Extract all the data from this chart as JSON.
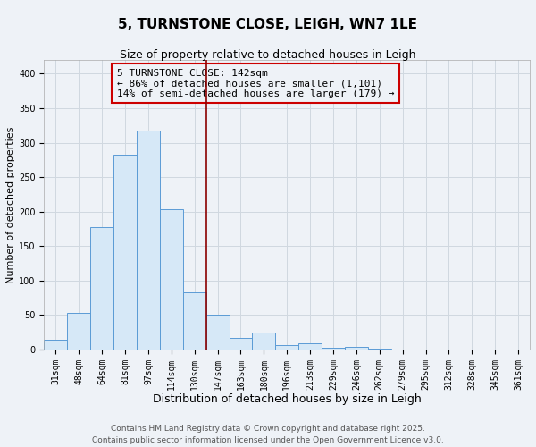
{
  "title": "5, TURNSTONE CLOSE, LEIGH, WN7 1LE",
  "subtitle": "Size of property relative to detached houses in Leigh",
  "xlabel": "Distribution of detached houses by size in Leigh",
  "ylabel": "Number of detached properties",
  "bin_labels": [
    "31sqm",
    "48sqm",
    "64sqm",
    "81sqm",
    "97sqm",
    "114sqm",
    "130sqm",
    "147sqm",
    "163sqm",
    "180sqm",
    "196sqm",
    "213sqm",
    "229sqm",
    "246sqm",
    "262sqm",
    "279sqm",
    "295sqm",
    "312sqm",
    "328sqm",
    "345sqm",
    "361sqm"
  ],
  "bar_heights": [
    14,
    53,
    178,
    283,
    317,
    203,
    83,
    51,
    17,
    24,
    6,
    9,
    3,
    4,
    1,
    0,
    0,
    0,
    0,
    0,
    0
  ],
  "bar_color_face": "#d6e8f7",
  "bar_color_edge": "#5b9bd5",
  "vline_x_index": 7,
  "vline_color": "#8b0000",
  "annotation_line1": "5 TURNSTONE CLOSE: 142sqm",
  "annotation_line2": "← 86% of detached houses are smaller (1,101)",
  "annotation_line3": "14% of semi-detached houses are larger (179) →",
  "annotation_box_color": "#cc0000",
  "ylim": [
    0,
    420
  ],
  "yticks": [
    0,
    50,
    100,
    150,
    200,
    250,
    300,
    350,
    400
  ],
  "grid_color": "#d0d8e0",
  "background_color": "#eef2f7",
  "footer_line1": "Contains HM Land Registry data © Crown copyright and database right 2025.",
  "footer_line2": "Contains public sector information licensed under the Open Government Licence v3.0.",
  "title_fontsize": 11,
  "subtitle_fontsize": 9,
  "xlabel_fontsize": 9,
  "ylabel_fontsize": 8,
  "annotation_fontsize": 8,
  "tick_fontsize": 7,
  "footer_fontsize": 6.5
}
